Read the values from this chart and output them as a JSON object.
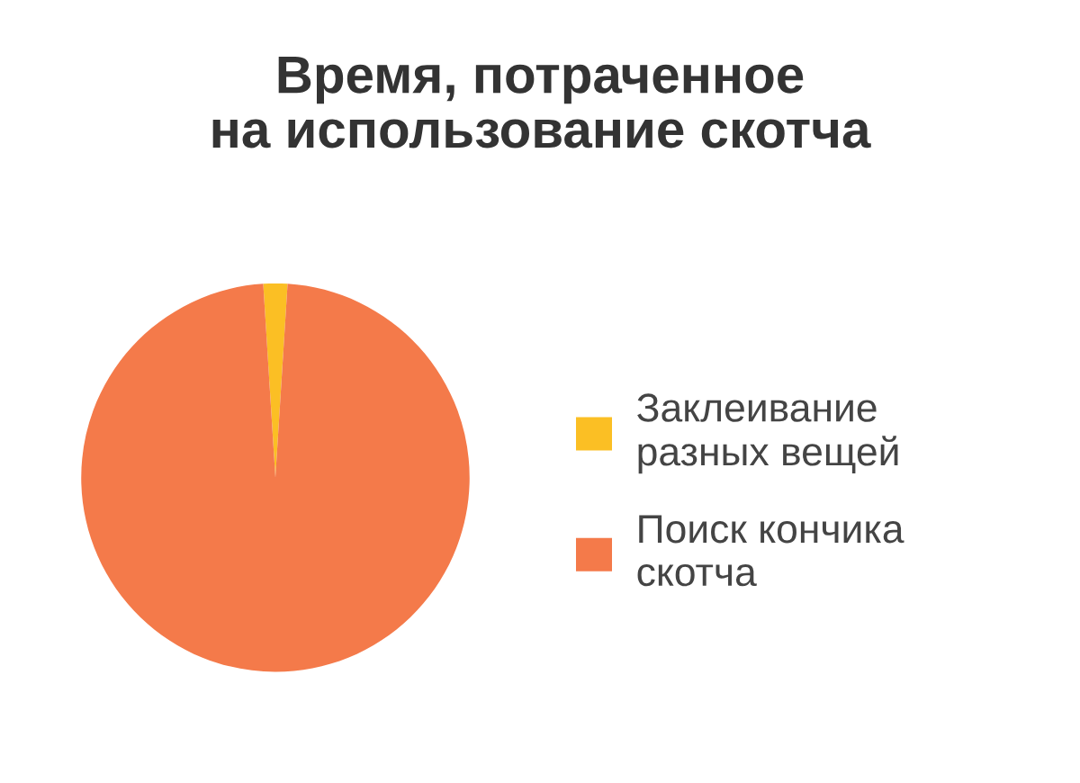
{
  "chart_data": {
    "type": "pie",
    "title": "Время, потраченное\nна использование скотча",
    "categories": [
      "Заклеивание\nразных вещей",
      "Поиск кончика\nскотча"
    ],
    "values": [
      2,
      98
    ],
    "colors": [
      "#fbbf24",
      "#f47a4a"
    ],
    "legend": "right"
  }
}
